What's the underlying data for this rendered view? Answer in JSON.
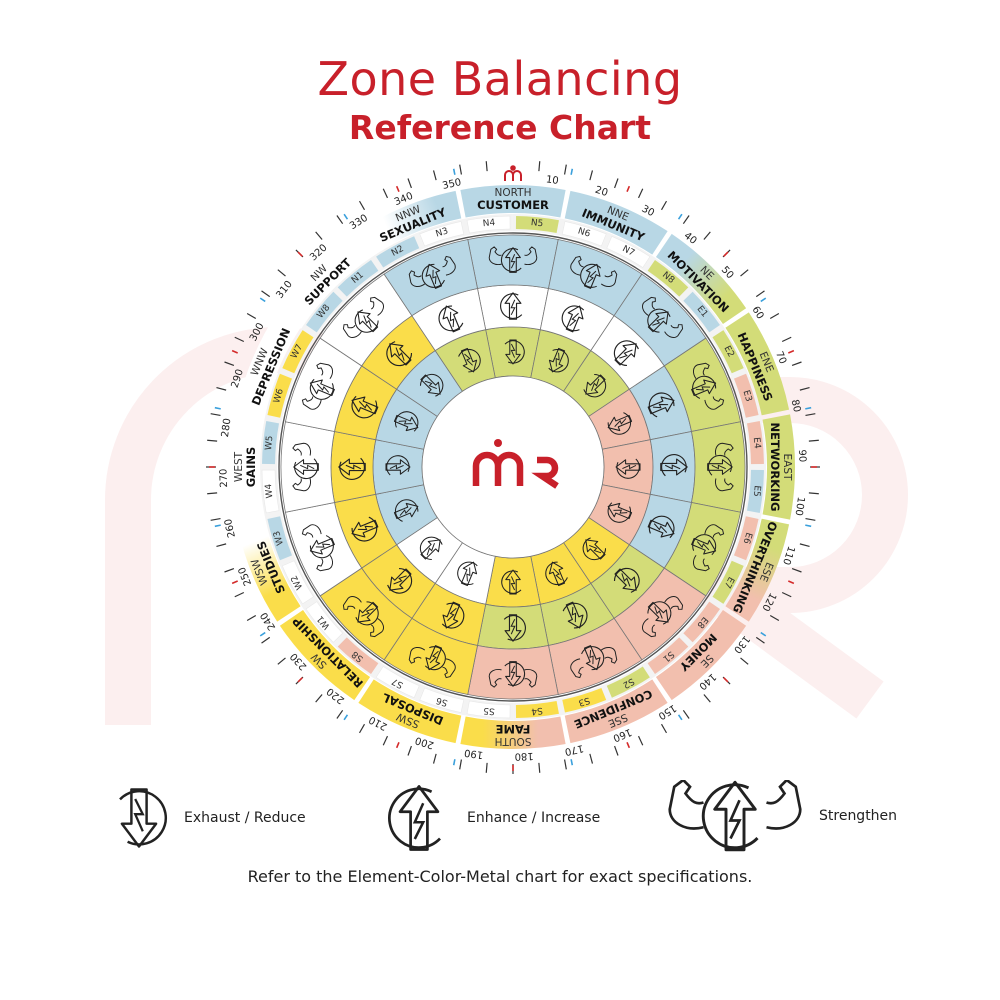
{
  "title": {
    "line1": "Zone Balancing",
    "line2": "Reference Chart"
  },
  "colors": {
    "brand": "#c8202a",
    "blue": "#b8d7e5",
    "green": "#d3dc78",
    "pink": "#f2bfae",
    "yellow": "#fadd4a",
    "white": "#ffffff",
    "watermark": "#fcefef"
  },
  "ring_icons": {
    "outer": "strengthen",
    "middle": "enhance",
    "inner": "exhaust"
  },
  "zones": [
    {
      "dir": "NORTH",
      "name": "CUSTOMER",
      "band": [
        "blue"
      ],
      "outer": "blue",
      "middle": "white",
      "inner": "green"
    },
    {
      "dir": "NNE",
      "name": "IMMUNITY",
      "band": [
        "blue"
      ],
      "outer": "blue",
      "middle": "white",
      "inner": "green"
    },
    {
      "dir": "NE",
      "name": "MOTIVATION",
      "band": [
        "blue",
        "green"
      ],
      "outer": "blue",
      "middle": "white",
      "inner": "green"
    },
    {
      "dir": "ENE",
      "name": "HAPPINESS",
      "band": [
        "green"
      ],
      "outer": "green",
      "middle": "blue",
      "inner": "pink"
    },
    {
      "dir": "EAST",
      "name": "NETWORKING",
      "band": [
        "green"
      ],
      "outer": "green",
      "middle": "blue",
      "inner": "pink"
    },
    {
      "dir": "ESE",
      "name": "OVERTHINKING",
      "band": [
        "green",
        "pink"
      ],
      "outer": "green",
      "middle": "blue",
      "inner": "pink"
    },
    {
      "dir": "SE",
      "name": "MONEY",
      "band": [
        "pink"
      ],
      "outer": "pink",
      "middle": "green",
      "inner": "yellow"
    },
    {
      "dir": "SSE",
      "name": "CONFIDENCE",
      "band": [
        "pink"
      ],
      "outer": "pink",
      "middle": "green",
      "inner": "yellow"
    },
    {
      "dir": "SOUTH",
      "name": "FAME",
      "band": [
        "pink",
        "yellow"
      ],
      "outer": "pink",
      "middle": "green",
      "inner": "yellow"
    },
    {
      "dir": "SSW",
      "name": "DISPOSAL",
      "band": [
        "yellow"
      ],
      "outer": "yellow",
      "middle": "yellow",
      "inner": "white"
    },
    {
      "dir": "SW",
      "name": "RELATIONSHIP",
      "band": [
        "yellow"
      ],
      "outer": "yellow",
      "middle": "yellow",
      "inner": "white"
    },
    {
      "dir": "WSW",
      "name": "STUDIES",
      "band": [
        "yellow",
        "white"
      ],
      "outer": "white",
      "middle": "yellow",
      "inner": "blue"
    },
    {
      "dir": "WEST",
      "name": "GAINS",
      "band": [
        "white"
      ],
      "outer": "white",
      "middle": "yellow",
      "inner": "blue"
    },
    {
      "dir": "WNW",
      "name": "DEPRESSION",
      "band": [
        "white"
      ],
      "outer": "white",
      "middle": "yellow",
      "inner": "blue"
    },
    {
      "dir": "NW",
      "name": "SUPPORT",
      "band": [
        "white"
      ],
      "outer": "white",
      "middle": "yellow",
      "inner": "blue"
    },
    {
      "dir": "NNW",
      "name": "SEXUALITY",
      "band": [
        "white",
        "blue"
      ],
      "outer": "blue",
      "middle": "white",
      "inner": "green"
    }
  ],
  "padas": [
    {
      "label": "N1",
      "color": "blue"
    },
    {
      "label": "N2",
      "color": "blue"
    },
    {
      "label": "N3",
      "color": "white"
    },
    {
      "label": "N4",
      "color": "white"
    },
    {
      "label": "N5",
      "color": "green"
    },
    {
      "label": "N6",
      "color": "white"
    },
    {
      "label": "N7",
      "color": "white"
    },
    {
      "label": "N8",
      "color": "green"
    },
    {
      "label": "E1",
      "color": "blue"
    },
    {
      "label": "E2",
      "color": "green"
    },
    {
      "label": "E3",
      "color": "pink"
    },
    {
      "label": "E4",
      "color": "pink"
    },
    {
      "label": "E5",
      "color": "blue"
    },
    {
      "label": "E6",
      "color": "pink"
    },
    {
      "label": "E7",
      "color": "green"
    },
    {
      "label": "E8",
      "color": "pink"
    },
    {
      "label": "S1",
      "color": "pink"
    },
    {
      "label": "S2",
      "color": "green"
    },
    {
      "label": "S3",
      "color": "yellow"
    },
    {
      "label": "S4",
      "color": "yellow"
    },
    {
      "label": "S5",
      "color": "white"
    },
    {
      "label": "S6",
      "color": "white"
    },
    {
      "label": "S7",
      "color": "white"
    },
    {
      "label": "S8",
      "color": "pink"
    },
    {
      "label": "W1",
      "color": "white"
    },
    {
      "label": "W2",
      "color": "white"
    },
    {
      "label": "W3",
      "color": "blue"
    },
    {
      "label": "W4",
      "color": "white"
    },
    {
      "label": "W5",
      "color": "blue"
    },
    {
      "label": "W6",
      "color": "yellow"
    },
    {
      "label": "W7",
      "color": "yellow"
    },
    {
      "label": "W8",
      "color": "blue"
    }
  ],
  "degree_labels": [
    "10",
    "20",
    "30",
    "40",
    "50",
    "60",
    "70",
    "80",
    "90",
    "100",
    "110",
    "120",
    "130",
    "140",
    "150",
    "160",
    "170",
    "180",
    "190",
    "200",
    "210",
    "220",
    "230",
    "240",
    "250",
    "260",
    "270",
    "280",
    "290",
    "300",
    "310",
    "320",
    "330",
    "340",
    "350"
  ],
  "legend": [
    {
      "icon": "exhaust",
      "label": "Exhaust / Reduce"
    },
    {
      "icon": "enhance",
      "label": "Enhance / Increase"
    },
    {
      "icon": "strengthen",
      "label": "Strengthen"
    }
  ],
  "footnote": "Refer to the Element-Color-Metal chart for exact specifications."
}
